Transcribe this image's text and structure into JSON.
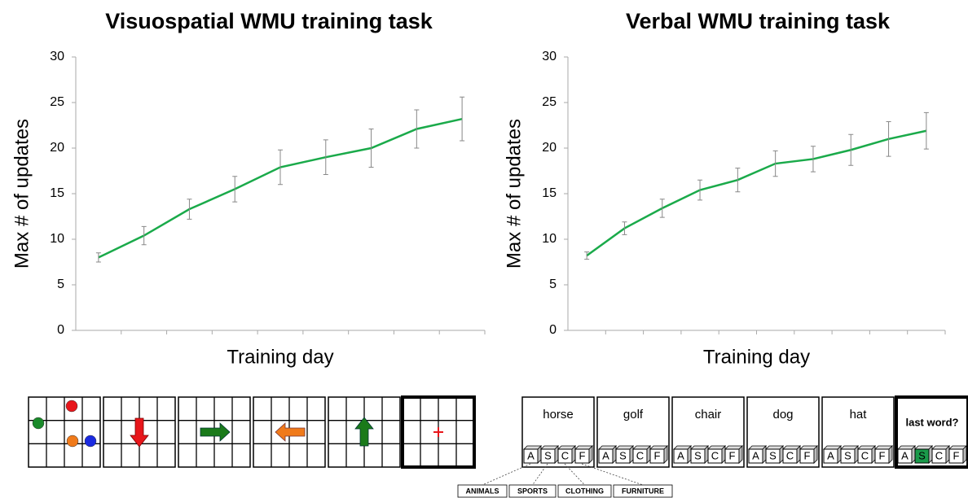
{
  "chart_data": [
    {
      "type": "line",
      "title": "Visuospatial WMU training task",
      "x_label": "Training day",
      "y_label": "Max # of updates",
      "categories": [
        null,
        null,
        null,
        null,
        null,
        null,
        null,
        null,
        null
      ],
      "series": [
        {
          "name": null,
          "color": "#1aaa4a",
          "values": [
            8.0,
            10.4,
            13.3,
            15.5,
            17.9,
            19.0,
            20.0,
            22.1,
            23.2
          ],
          "errors": [
            0.5,
            1.0,
            1.1,
            1.4,
            1.9,
            1.9,
            2.1,
            2.1,
            2.4
          ]
        }
      ],
      "ylim": [
        0,
        30
      ],
      "yticks": [
        0,
        5,
        10,
        15,
        20,
        25,
        30
      ],
      "grid": false
    },
    {
      "type": "line",
      "title": "Verbal WMU training task",
      "x_label": "Training day",
      "y_label": "Max # of updates",
      "categories": [
        null,
        null,
        null,
        null,
        null,
        null,
        null,
        null,
        null,
        null
      ],
      "series": [
        {
          "name": null,
          "color": "#1aaa4a",
          "values": [
            8.2,
            11.2,
            13.4,
            15.4,
            16.5,
            18.3,
            18.8,
            19.8,
            21.0,
            21.9
          ],
          "errors": [
            0.4,
            0.7,
            1.0,
            1.1,
            1.3,
            1.4,
            1.4,
            1.7,
            1.9,
            2.0
          ]
        }
      ],
      "ylim": [
        0,
        30
      ],
      "yticks": [
        0,
        5,
        10,
        15,
        20,
        25,
        30
      ],
      "grid": false
    }
  ],
  "illustration": {
    "words": [
      "horse",
      "golf",
      "chair",
      "dog",
      "hat"
    ],
    "prompt": "last word?",
    "keys": [
      "A",
      "S",
      "C",
      "F"
    ],
    "categories": [
      "ANIMALS",
      "SPORTS",
      "CLOTHING",
      "FURNITURE"
    ]
  }
}
